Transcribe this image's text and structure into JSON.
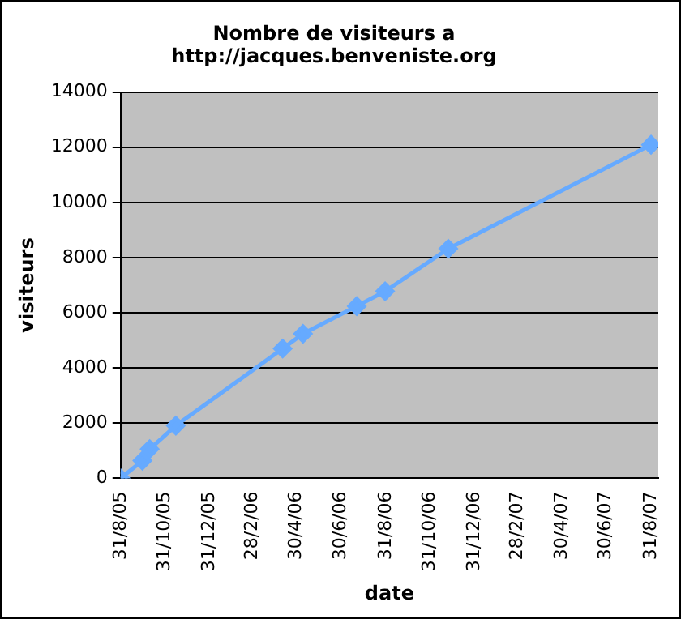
{
  "chart_data": {
    "type": "line",
    "title": "Nombre de visiteurs a\nhttp://jacques.benveniste.org",
    "xlabel": "date",
    "ylabel": "visiteurs",
    "x": [
      "2005-08-31",
      "2005-09-30",
      "2005-10-10",
      "2005-11-15",
      "2006-04-11",
      "2006-05-09",
      "2006-07-22",
      "2006-08-30",
      "2006-11-25",
      "2007-08-31"
    ],
    "series": [
      {
        "color": "#66aaff",
        "values": [
          0,
          640,
          1060,
          1910,
          4700,
          5240,
          6240,
          6780,
          8320,
          12090
        ]
      }
    ],
    "xlim": [
      "2005-08-31",
      "2007-09-10"
    ],
    "xticks": [
      {
        "value": "2005-08-31",
        "label": "31/8/05"
      },
      {
        "value": "2005-10-31",
        "label": "31/10/05"
      },
      {
        "value": "2005-12-31",
        "label": "31/12/05"
      },
      {
        "value": "2006-02-28",
        "label": "28/2/06"
      },
      {
        "value": "2006-04-30",
        "label": "30/4/06"
      },
      {
        "value": "2006-06-30",
        "label": "30/6/06"
      },
      {
        "value": "2006-08-31",
        "label": "31/8/06"
      },
      {
        "value": "2006-10-31",
        "label": "31/10/06"
      },
      {
        "value": "2006-12-31",
        "label": "31/12/06"
      },
      {
        "value": "2007-02-28",
        "label": "28/2/07"
      },
      {
        "value": "2007-04-30",
        "label": "30/4/07"
      },
      {
        "value": "2007-06-30",
        "label": "30/6/07"
      },
      {
        "value": "2007-08-31",
        "label": "31/8/07"
      }
    ],
    "ylim": [
      0,
      14000
    ],
    "yticks": [
      0,
      2000,
      4000,
      6000,
      8000,
      10000,
      12000,
      14000
    ],
    "grid": "y",
    "legend": false,
    "marker": "diamond",
    "line_style": "solid"
  }
}
